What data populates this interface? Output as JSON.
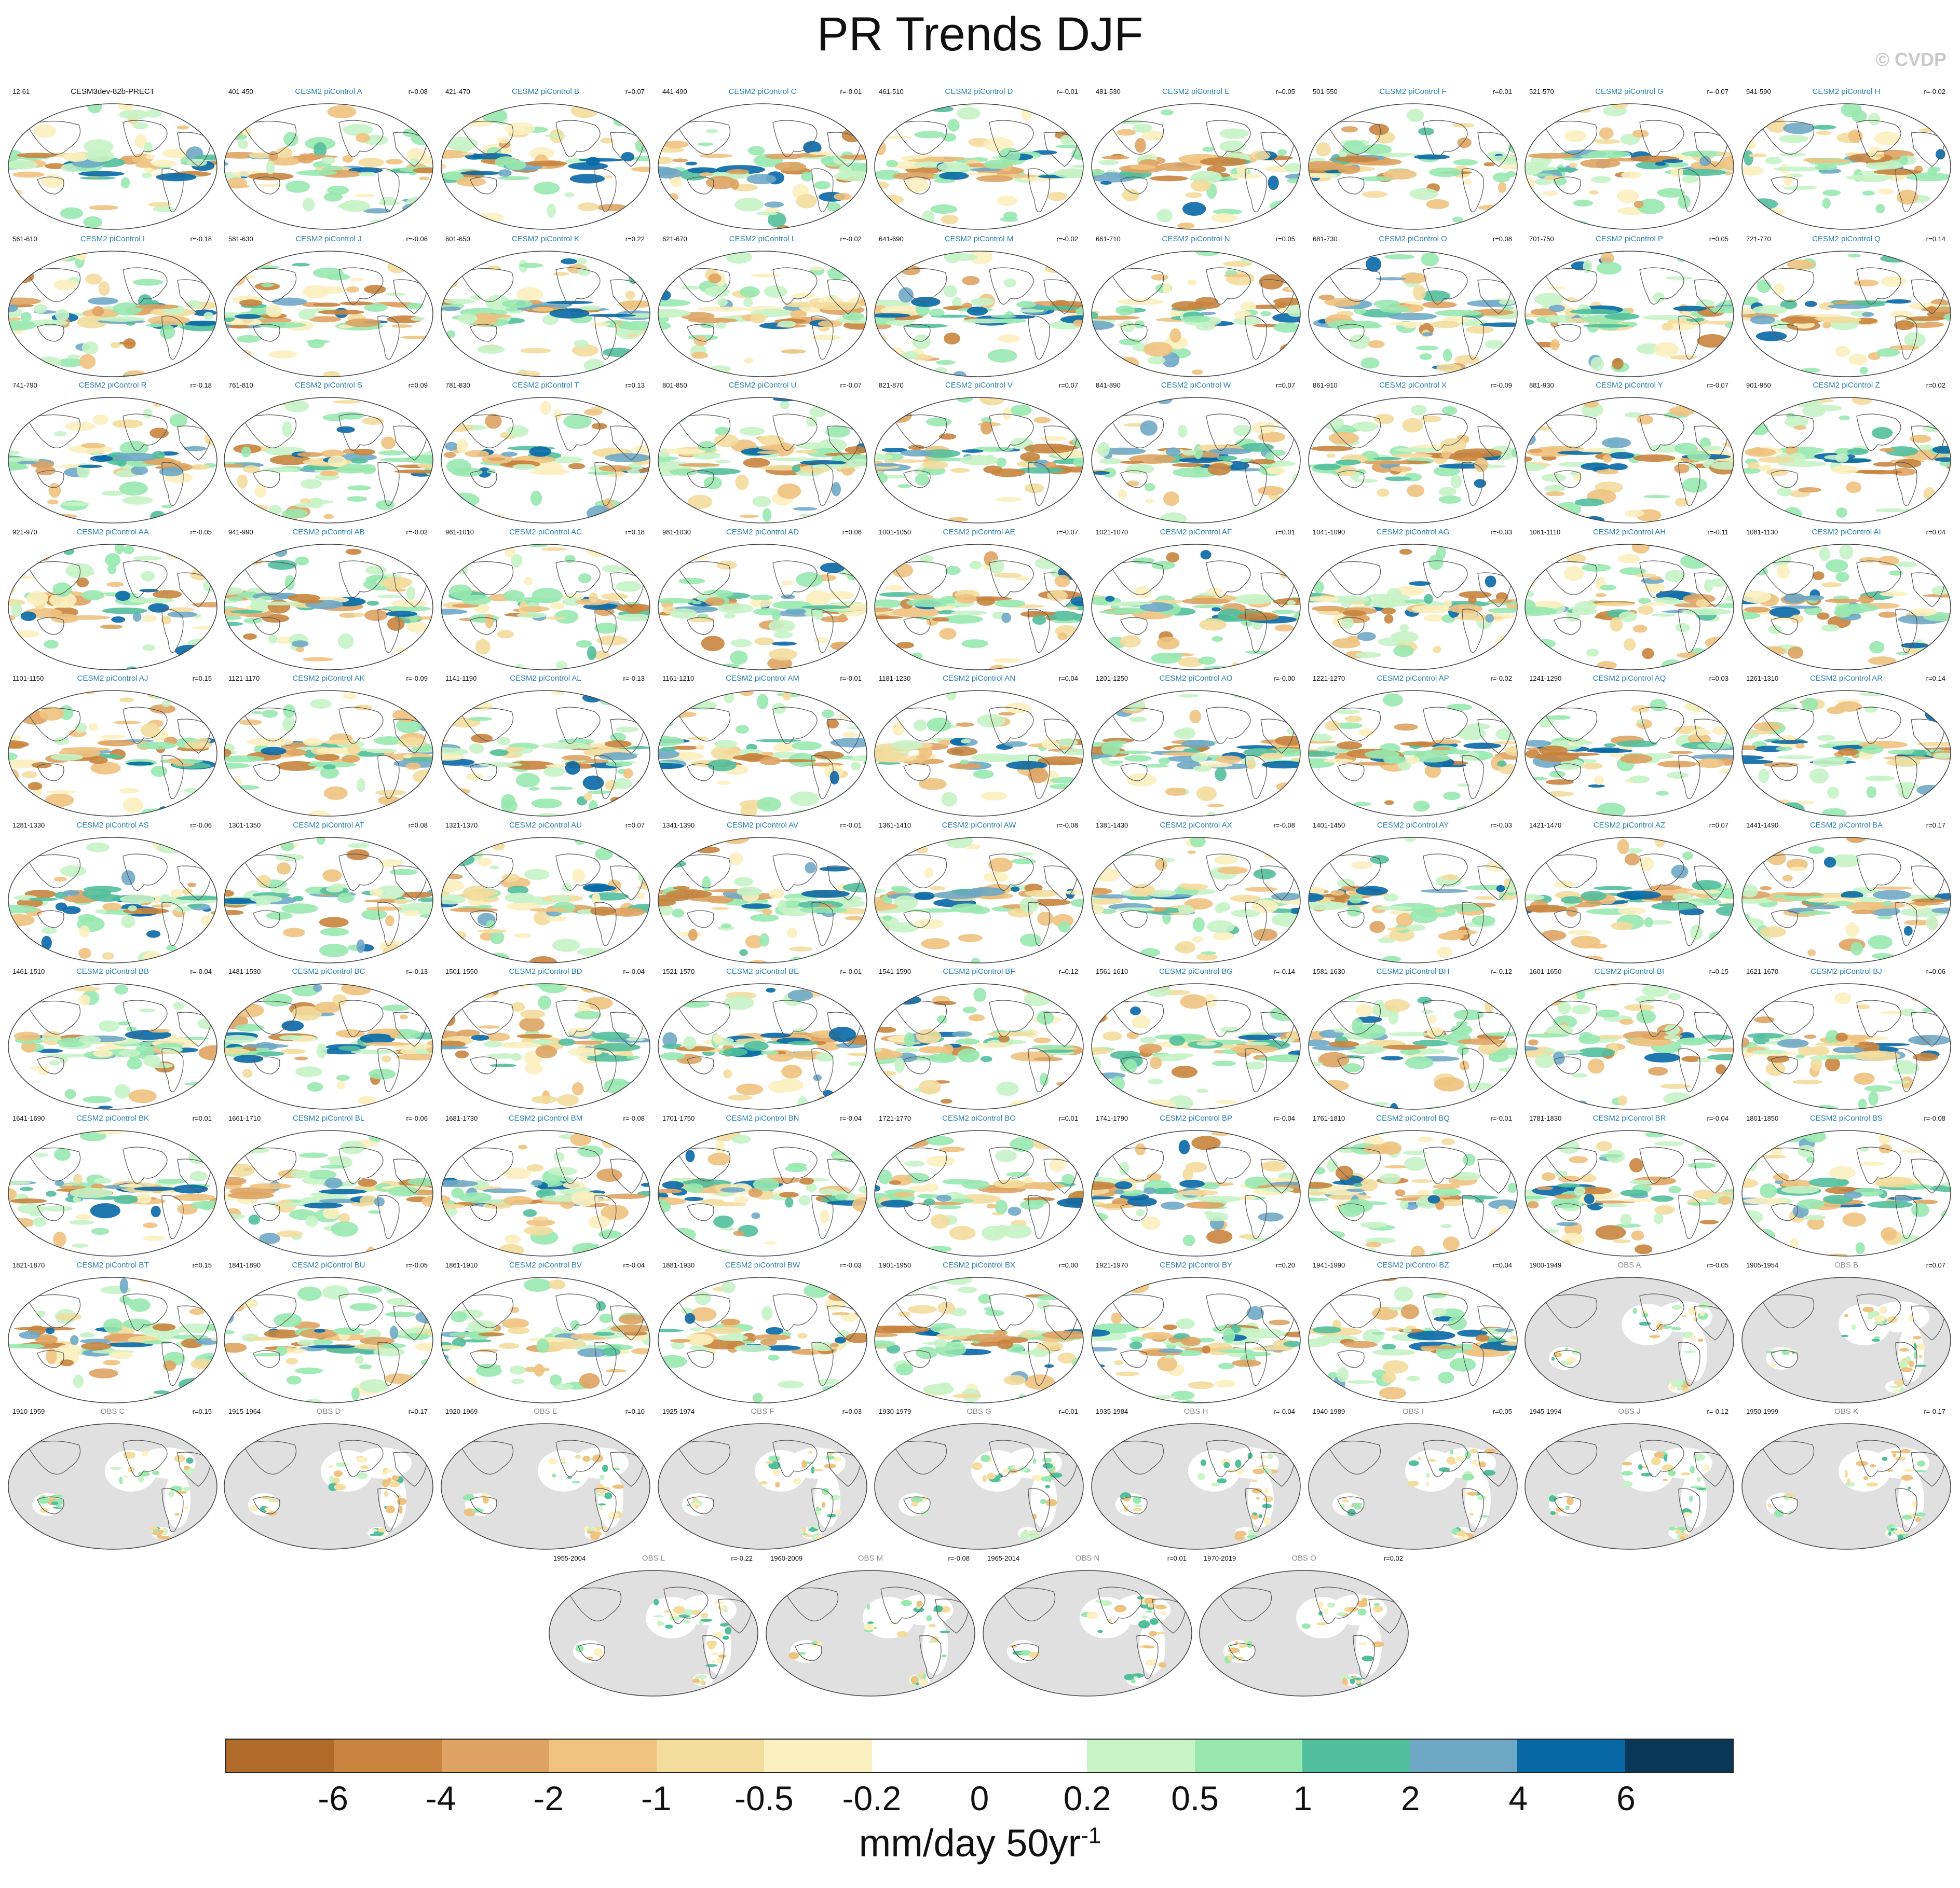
{
  "title": "PR Trends DJF",
  "copyright": "© CVDP",
  "chart_data": {
    "type": "map-panels",
    "panels": [
      {
        "years": "12-61",
        "title": "CESM3dev-82b-PRECT",
        "r": "",
        "kind": "ref"
      },
      {
        "years": "401-450",
        "title": "CESM2 piControl A",
        "r": "r=0.08",
        "kind": "model"
      },
      {
        "years": "421-470",
        "title": "CESM2 piControl B",
        "r": "r=0.07",
        "kind": "model"
      },
      {
        "years": "441-490",
        "title": "CESM2 piControl C",
        "r": "r=-0.01",
        "kind": "model"
      },
      {
        "years": "461-510",
        "title": "CESM2 piControl D",
        "r": "r=-0.01",
        "kind": "model"
      },
      {
        "years": "481-530",
        "title": "CESM2 piControl E",
        "r": "r=0.05",
        "kind": "model"
      },
      {
        "years": "501-550",
        "title": "CESM2 piControl F",
        "r": "r=0.01",
        "kind": "model"
      },
      {
        "years": "521-570",
        "title": "CESM2 piControl G",
        "r": "r=-0.07",
        "kind": "model"
      },
      {
        "years": "541-590",
        "title": "CESM2 piControl H",
        "r": "r=-0.02",
        "kind": "model"
      },
      {
        "years": "561-610",
        "title": "CESM2 piControl I",
        "r": "r=-0.18",
        "kind": "model"
      },
      {
        "years": "581-630",
        "title": "CESM2 piControl J",
        "r": "r=-0.06",
        "kind": "model"
      },
      {
        "years": "601-650",
        "title": "CESM2 piControl K",
        "r": "r=0.22",
        "kind": "model"
      },
      {
        "years": "621-670",
        "title": "CESM2 piControl L",
        "r": "r=-0.02",
        "kind": "model"
      },
      {
        "years": "641-690",
        "title": "CESM2 piControl M",
        "r": "r=-0.02",
        "kind": "model"
      },
      {
        "years": "661-710",
        "title": "CESM2 piControl N",
        "r": "r=0.05",
        "kind": "model"
      },
      {
        "years": "681-730",
        "title": "CESM2 piControl O",
        "r": "r=0.08",
        "kind": "model"
      },
      {
        "years": "701-750",
        "title": "CESM2 piControl P",
        "r": "r=0.05",
        "kind": "model"
      },
      {
        "years": "721-770",
        "title": "CESM2 piControl Q",
        "r": "r=0.14",
        "kind": "model"
      },
      {
        "years": "741-790",
        "title": "CESM2 piControl R",
        "r": "r=-0.18",
        "kind": "model"
      },
      {
        "years": "761-810",
        "title": "CESM2 piControl S",
        "r": "r=0.09",
        "kind": "model"
      },
      {
        "years": "781-830",
        "title": "CESM2 piControl T",
        "r": "r=0.13",
        "kind": "model"
      },
      {
        "years": "801-850",
        "title": "CESM2 piControl U",
        "r": "r=-0.07",
        "kind": "model"
      },
      {
        "years": "821-870",
        "title": "CESM2 piControl V",
        "r": "r=0.07",
        "kind": "model"
      },
      {
        "years": "841-890",
        "title": "CESM2 piControl W",
        "r": "r=0.07",
        "kind": "model"
      },
      {
        "years": "861-910",
        "title": "CESM2 piControl X",
        "r": "r=-0.09",
        "kind": "model"
      },
      {
        "years": "881-930",
        "title": "CESM2 piControl Y",
        "r": "r=-0.07",
        "kind": "model"
      },
      {
        "years": "901-950",
        "title": "CESM2 piControl Z",
        "r": "r=0.02",
        "kind": "model"
      },
      {
        "years": "921-970",
        "title": "CESM2 piControl AA",
        "r": "r=-0.05",
        "kind": "model"
      },
      {
        "years": "941-990",
        "title": "CESM2 piControl AB",
        "r": "r=-0.02",
        "kind": "model"
      },
      {
        "years": "961-1010",
        "title": "CESM2 piControl AC",
        "r": "r=0.18",
        "kind": "model"
      },
      {
        "years": "981-1030",
        "title": "CESM2 piControl AD",
        "r": "r=0.06",
        "kind": "model"
      },
      {
        "years": "1001-1050",
        "title": "CESM2 piControl AE",
        "r": "r=-0.07",
        "kind": "model"
      },
      {
        "years": "1021-1070",
        "title": "CESM2 piControl AF",
        "r": "r=0.01",
        "kind": "model"
      },
      {
        "years": "1041-1090",
        "title": "CESM2 piControl AG",
        "r": "r=-0.03",
        "kind": "model"
      },
      {
        "years": "1061-1110",
        "title": "CESM2 piControl AH",
        "r": "r=-0.11",
        "kind": "model"
      },
      {
        "years": "1081-1130",
        "title": "CESM2 piControl AI",
        "r": "r=0.04",
        "kind": "model"
      },
      {
        "years": "1101-1150",
        "title": "CESM2 piControl AJ",
        "r": "r=0.15",
        "kind": "model"
      },
      {
        "years": "1121-1170",
        "title": "CESM2 piControl AK",
        "r": "r=-0.09",
        "kind": "model"
      },
      {
        "years": "1141-1190",
        "title": "CESM2 piControl AL",
        "r": "r=-0.13",
        "kind": "model"
      },
      {
        "years": "1161-1210",
        "title": "CESM2 piControl AM",
        "r": "r=-0.01",
        "kind": "model"
      },
      {
        "years": "1181-1230",
        "title": "CESM2 piControl AN",
        "r": "r=0.04",
        "kind": "model"
      },
      {
        "years": "1201-1250",
        "title": "CESM2 piControl AO",
        "r": "r=-0.00",
        "kind": "model"
      },
      {
        "years": "1221-1270",
        "title": "CESM2 piControl AP",
        "r": "r=-0.02",
        "kind": "model"
      },
      {
        "years": "1241-1290",
        "title": "CESM2 piControl AQ",
        "r": "r=0.03",
        "kind": "model"
      },
      {
        "years": "1261-1310",
        "title": "CESM2 piControl AR",
        "r": "r=0.14",
        "kind": "model"
      },
      {
        "years": "1281-1330",
        "title": "CESM2 piControl AS",
        "r": "r=-0.06",
        "kind": "model"
      },
      {
        "years": "1301-1350",
        "title": "CESM2 piControl AT",
        "r": "r=0.08",
        "kind": "model"
      },
      {
        "years": "1321-1370",
        "title": "CESM2 piControl AU",
        "r": "r=0.07",
        "kind": "model"
      },
      {
        "years": "1341-1390",
        "title": "CESM2 piControl AV",
        "r": "r=-0.01",
        "kind": "model"
      },
      {
        "years": "1361-1410",
        "title": "CESM2 piControl AW",
        "r": "r=-0.08",
        "kind": "model"
      },
      {
        "years": "1381-1430",
        "title": "CESM2 piControl AX",
        "r": "r=-0.08",
        "kind": "model"
      },
      {
        "years": "1401-1450",
        "title": "CESM2 piControl AY",
        "r": "r=-0.03",
        "kind": "model"
      },
      {
        "years": "1421-1470",
        "title": "CESM2 piControl AZ",
        "r": "r=0.07",
        "kind": "model"
      },
      {
        "years": "1441-1490",
        "title": "CESM2 piControl BA",
        "r": "r=0.17",
        "kind": "model"
      },
      {
        "years": "1461-1510",
        "title": "CESM2 piControl BB",
        "r": "r=-0.04",
        "kind": "model"
      },
      {
        "years": "1481-1530",
        "title": "CESM2 piControl BC",
        "r": "r=-0.13",
        "kind": "model"
      },
      {
        "years": "1501-1550",
        "title": "CESM2 piControl BD",
        "r": "r=-0.04",
        "kind": "model"
      },
      {
        "years": "1521-1570",
        "title": "CESM2 piControl BE",
        "r": "r=-0.01",
        "kind": "model"
      },
      {
        "years": "1541-1590",
        "title": "CESM2 piControl BF",
        "r": "r=0.12",
        "kind": "model"
      },
      {
        "years": "1561-1610",
        "title": "CESM2 piControl BG",
        "r": "r=-0.14",
        "kind": "model"
      },
      {
        "years": "1581-1630",
        "title": "CESM2 piControl BH",
        "r": "r=-0.12",
        "kind": "model"
      },
      {
        "years": "1601-1650",
        "title": "CESM2 piControl BI",
        "r": "r=0.15",
        "kind": "model"
      },
      {
        "years": "1621-1670",
        "title": "CESM2 piControl BJ",
        "r": "r=0.06",
        "kind": "model"
      },
      {
        "years": "1641-1690",
        "title": "CESM2 piControl BK",
        "r": "r=0.01",
        "kind": "model"
      },
      {
        "years": "1661-1710",
        "title": "CESM2 piControl BL",
        "r": "r=-0.06",
        "kind": "model"
      },
      {
        "years": "1681-1730",
        "title": "CESM2 piControl BM",
        "r": "r=-0.08",
        "kind": "model"
      },
      {
        "years": "1701-1750",
        "title": "CESM2 piControl BN",
        "r": "r=-0.04",
        "kind": "model"
      },
      {
        "years": "1721-1770",
        "title": "CESM2 piControl BO",
        "r": "r=0.01",
        "kind": "model"
      },
      {
        "years": "1741-1790",
        "title": "CESM2 piControl BP",
        "r": "r=-0.04",
        "kind": "model"
      },
      {
        "years": "1761-1810",
        "title": "CESM2 piControl BQ",
        "r": "r=-0.01",
        "kind": "model"
      },
      {
        "years": "1781-1830",
        "title": "CESM2 piControl BR",
        "r": "r=-0.04",
        "kind": "model"
      },
      {
        "years": "1801-1850",
        "title": "CESM2 piControl BS",
        "r": "r=-0.08",
        "kind": "model"
      },
      {
        "years": "1821-1870",
        "title": "CESM2 piControl BT",
        "r": "r=0.15",
        "kind": "model"
      },
      {
        "years": "1841-1890",
        "title": "CESM2 piControl BU",
        "r": "r=-0.05",
        "kind": "model"
      },
      {
        "years": "1861-1910",
        "title": "CESM2 piControl BV",
        "r": "r=-0.04",
        "kind": "model"
      },
      {
        "years": "1881-1930",
        "title": "CESM2 piControl BW",
        "r": "r=-0.03",
        "kind": "model"
      },
      {
        "years": "1901-1950",
        "title": "CESM2 piControl BX",
        "r": "r=0.00",
        "kind": "model"
      },
      {
        "years": "1921-1970",
        "title": "CESM2 piControl BY",
        "r": "r=0.20",
        "kind": "model"
      },
      {
        "years": "1941-1990",
        "title": "CESM2 piControl BZ",
        "r": "r=0.04",
        "kind": "model"
      },
      {
        "years": "1900-1949",
        "title": "OBS A",
        "r": "r=-0.05",
        "kind": "obs"
      },
      {
        "years": "1905-1954",
        "title": "OBS B",
        "r": "r=0.07",
        "kind": "obs"
      },
      {
        "years": "1910-1959",
        "title": "OBS C",
        "r": "r=0.15",
        "kind": "obs"
      },
      {
        "years": "1915-1964",
        "title": "OBS D",
        "r": "r=0.17",
        "kind": "obs"
      },
      {
        "years": "1920-1969",
        "title": "OBS E",
        "r": "r=0.10",
        "kind": "obs"
      },
      {
        "years": "1925-1974",
        "title": "OBS F",
        "r": "r=0.03",
        "kind": "obs"
      },
      {
        "years": "1930-1979",
        "title": "OBS G",
        "r": "r=0.01",
        "kind": "obs"
      },
      {
        "years": "1935-1984",
        "title": "OBS H",
        "r": "r=-0.04",
        "kind": "obs"
      },
      {
        "years": "1940-1989",
        "title": "OBS I",
        "r": "r=0.05",
        "kind": "obs"
      },
      {
        "years": "1945-1994",
        "title": "OBS J",
        "r": "r=-0.12",
        "kind": "obs"
      },
      {
        "years": "1950-1999",
        "title": "OBS K",
        "r": "r=-0.17",
        "kind": "obs"
      },
      {
        "years": "1955-2004",
        "title": "OBS L",
        "r": "r=-0.22",
        "kind": "obs"
      },
      {
        "years": "1960-2009",
        "title": "OBS M",
        "r": "r=-0.08",
        "kind": "obs"
      },
      {
        "years": "1965-2014",
        "title": "OBS N",
        "r": "r=0.01",
        "kind": "obs"
      },
      {
        "years": "1970-2019",
        "title": "OBS O",
        "r": "r=0.02",
        "kind": "obs"
      }
    ],
    "colorbar": {
      "tick_labels": [
        "-6",
        "-4",
        "-2",
        "-1",
        "-0.5",
        "-0.2",
        "0",
        "0.2",
        "0.5",
        "1",
        "2",
        "4",
        "6"
      ],
      "colors": [
        "#b06a2a",
        "#c8843e",
        "#dea362",
        "#efc27f",
        "#f3dc9c",
        "#fbf0bf",
        "#ffffff",
        "#ffffff",
        "#c7f3c7",
        "#98e8b0",
        "#52bf9c",
        "#6fa8c7",
        "#0868a6",
        "#083757"
      ],
      "units": "mm/day 50yr",
      "units_exponent": "-1"
    },
    "style": {
      "model_title_color": "#2a82b0",
      "obs_title_color": "#8f8f8f",
      "land_mask_color": "#e0e0e0"
    }
  }
}
